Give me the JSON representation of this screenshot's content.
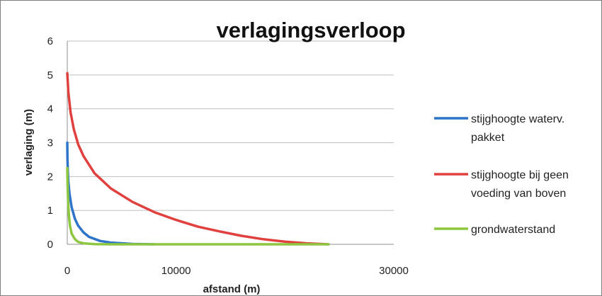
{
  "chart_data": {
    "type": "line",
    "title": "verlagingsverloop",
    "xlabel": "afstand (m)",
    "ylabel": "verlaging (m)",
    "xlim": [
      0,
      30000
    ],
    "ylim": [
      0,
      6
    ],
    "x_ticks": [
      "0",
      "10000",
      "30000"
    ],
    "y_ticks": [
      "0",
      "1",
      "2",
      "3",
      "4",
      "5",
      "6"
    ],
    "grid": "horizontal",
    "legend_position": "right",
    "series": [
      {
        "name": "stijghoogte waterv. pakket",
        "legend_lines": [
          "stijghoogte waterv.",
          "pakket"
        ],
        "color": "#2e75c9",
        "points": [
          [
            0,
            3.0
          ],
          [
            20,
            2.5
          ],
          [
            50,
            2.15
          ],
          [
            100,
            1.85
          ],
          [
            200,
            1.5
          ],
          [
            400,
            1.1
          ],
          [
            700,
            0.75
          ],
          [
            1000,
            0.55
          ],
          [
            1500,
            0.35
          ],
          [
            2000,
            0.22
          ],
          [
            3000,
            0.1
          ],
          [
            4000,
            0.05
          ],
          [
            6000,
            0.01
          ],
          [
            8000,
            0.0
          ]
        ]
      },
      {
        "name": "stijghoogte bij geen voeding van boven",
        "legend_lines": [
          "stijghoogte bij geen",
          "voeding van boven"
        ],
        "color": "#e0403e",
        "points": [
          [
            0,
            5.05
          ],
          [
            100,
            4.5
          ],
          [
            300,
            3.9
          ],
          [
            600,
            3.4
          ],
          [
            1000,
            2.95
          ],
          [
            1500,
            2.6
          ],
          [
            2500,
            2.1
          ],
          [
            4000,
            1.65
          ],
          [
            6000,
            1.25
          ],
          [
            8000,
            0.95
          ],
          [
            10000,
            0.72
          ],
          [
            12000,
            0.52
          ],
          [
            14000,
            0.38
          ],
          [
            16000,
            0.25
          ],
          [
            18000,
            0.15
          ],
          [
            20000,
            0.08
          ],
          [
            22000,
            0.03
          ],
          [
            24000,
            0.0
          ]
        ]
      },
      {
        "name": "grondwaterstand",
        "legend_lines": [
          "grondwaterstand"
        ],
        "color": "#8dc63f",
        "points": [
          [
            0,
            2.25
          ],
          [
            30,
            1.7
          ],
          [
            80,
            1.25
          ],
          [
            150,
            0.85
          ],
          [
            250,
            0.55
          ],
          [
            400,
            0.32
          ],
          [
            700,
            0.15
          ],
          [
            1000,
            0.07
          ],
          [
            1500,
            0.03
          ],
          [
            2500,
            0.005
          ],
          [
            4000,
            0.0
          ],
          [
            24000,
            0.0
          ]
        ]
      }
    ]
  }
}
